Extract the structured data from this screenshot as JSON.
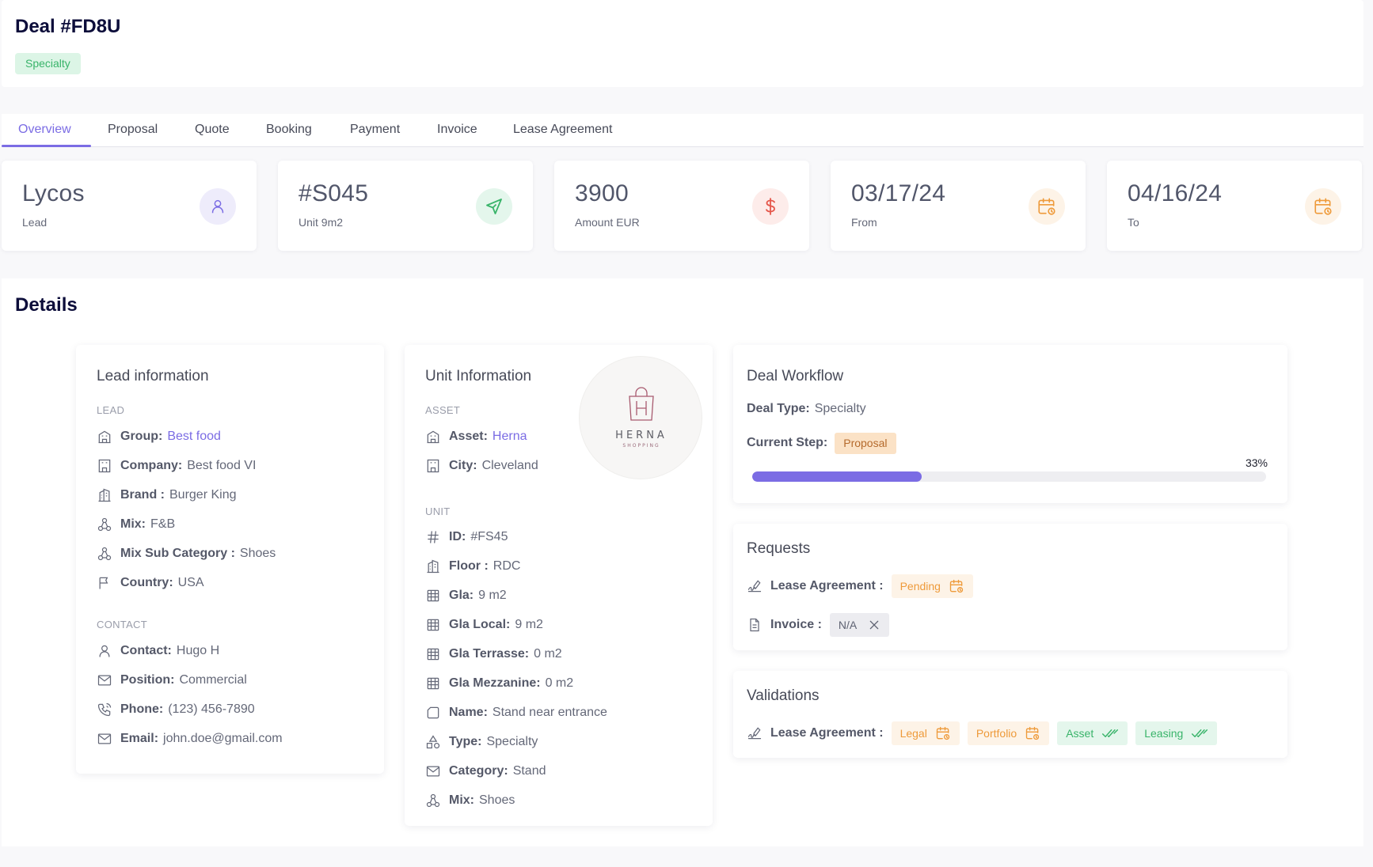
{
  "header": {
    "title": "Deal #FD8U",
    "badge": "Specialty"
  },
  "tabs": [
    {
      "label": "Overview",
      "active": true
    },
    {
      "label": "Proposal"
    },
    {
      "label": "Quote"
    },
    {
      "label": "Booking"
    },
    {
      "label": "Payment"
    },
    {
      "label": "Invoice"
    },
    {
      "label": "Lease Agreement"
    }
  ],
  "stats": [
    {
      "value": "Lycos",
      "label": "Lead",
      "icon": "user-icon",
      "color": "#7b6ce4",
      "bg": "#eeecfb"
    },
    {
      "value": "#S045",
      "label": "Unit 9m2",
      "icon": "send-icon",
      "color": "#39b46a",
      "bg": "#e4f6ec"
    },
    {
      "value": "3900",
      "label": "Amount EUR",
      "icon": "dollar-icon",
      "color": "#e5574b",
      "bg": "#fdecea"
    },
    {
      "value": "03/17/24",
      "label": "From",
      "icon": "calendar-icon",
      "color": "#ee9a3a",
      "bg": "#fdf3e7"
    },
    {
      "value": "04/16/24",
      "label": "To",
      "icon": "calendar-icon",
      "color": "#ee9a3a",
      "bg": "#fdf3e7"
    }
  ],
  "details": {
    "title": "Details",
    "lead": {
      "title": "Lead information",
      "lead_section": "LEAD",
      "contact_section": "CONTACT",
      "rows": [
        {
          "key": "Group:",
          "value": "Best food",
          "icon": "building-icon",
          "link": true
        },
        {
          "key": "Company:",
          "value": "Best food VI",
          "icon": "office-icon"
        },
        {
          "key": "Brand :",
          "value": "Burger King",
          "icon": "buildings-icon"
        },
        {
          "key": "Mix:",
          "value": "F&B",
          "icon": "mix-icon"
        },
        {
          "key": "Mix Sub Category :",
          "value": "Shoes",
          "icon": "mix-icon"
        },
        {
          "key": "Country:",
          "value": "USA",
          "icon": "flag-icon"
        }
      ],
      "contact_rows": [
        {
          "key": "Contact:",
          "value": "Hugo H",
          "icon": "user-icon"
        },
        {
          "key": "Position:",
          "value": "Commercial",
          "icon": "mail-icon"
        },
        {
          "key": "Phone:",
          "value": "(123) 456-7890",
          "icon": "phone-icon"
        },
        {
          "key": "Email:",
          "value": "john.doe@gmail.com",
          "icon": "mail-icon"
        }
      ]
    },
    "unit": {
      "title": "Unit Information",
      "asset_section": "ASSET",
      "unit_section": "UNIT",
      "logo": {
        "word": "HERNA",
        "sub": "SHOPPING",
        "letter": "H"
      },
      "asset_rows": [
        {
          "key": "Asset:",
          "value": "Herna",
          "icon": "building-icon",
          "link": true
        },
        {
          "key": "City:",
          "value": "Cleveland",
          "icon": "office-icon"
        }
      ],
      "unit_rows": [
        {
          "key": "ID:",
          "value": "#FS45",
          "icon": "hash-icon"
        },
        {
          "key": "Floor :",
          "value": "RDC",
          "icon": "buildings-icon"
        },
        {
          "key": "Gla:",
          "value": "9 m2",
          "icon": "grid-icon"
        },
        {
          "key": "Gla Local:",
          "value": "9 m2",
          "icon": "grid-icon"
        },
        {
          "key": "Gla Terrasse:",
          "value": "0 m2",
          "icon": "grid-icon"
        },
        {
          "key": "Gla Mezzanine:",
          "value": "0 m2",
          "icon": "grid-icon"
        },
        {
          "key": "Name:",
          "value": "Stand near entrance",
          "icon": "tag-icon"
        },
        {
          "key": "Type:",
          "value": "Specialty",
          "icon": "shapes-icon"
        },
        {
          "key": "Category:",
          "value": "Stand",
          "icon": "mail-icon"
        },
        {
          "key": "Mix:",
          "value": "Shoes",
          "icon": "mix-icon"
        }
      ]
    },
    "workflow": {
      "title": "Deal Workflow",
      "deal_type_key": "Deal Type:",
      "deal_type_value": "Specialty",
      "current_step_key": "Current Step:",
      "current_step_value": "Proposal",
      "progress_label": "33%",
      "progress": 0.33
    },
    "requests": {
      "title": "Requests",
      "lease_key": "Lease Agreement :",
      "lease_status": "Pending",
      "invoice_key": "Invoice :",
      "invoice_status": "N/A"
    },
    "validations": {
      "title": "Validations",
      "lease_key": "Lease Agreement :",
      "items": [
        {
          "label": "Legal",
          "state": "pending"
        },
        {
          "label": "Portfolio",
          "state": "pending"
        },
        {
          "label": "Asset",
          "state": "done"
        },
        {
          "label": "Leasing",
          "state": "done"
        }
      ]
    }
  }
}
